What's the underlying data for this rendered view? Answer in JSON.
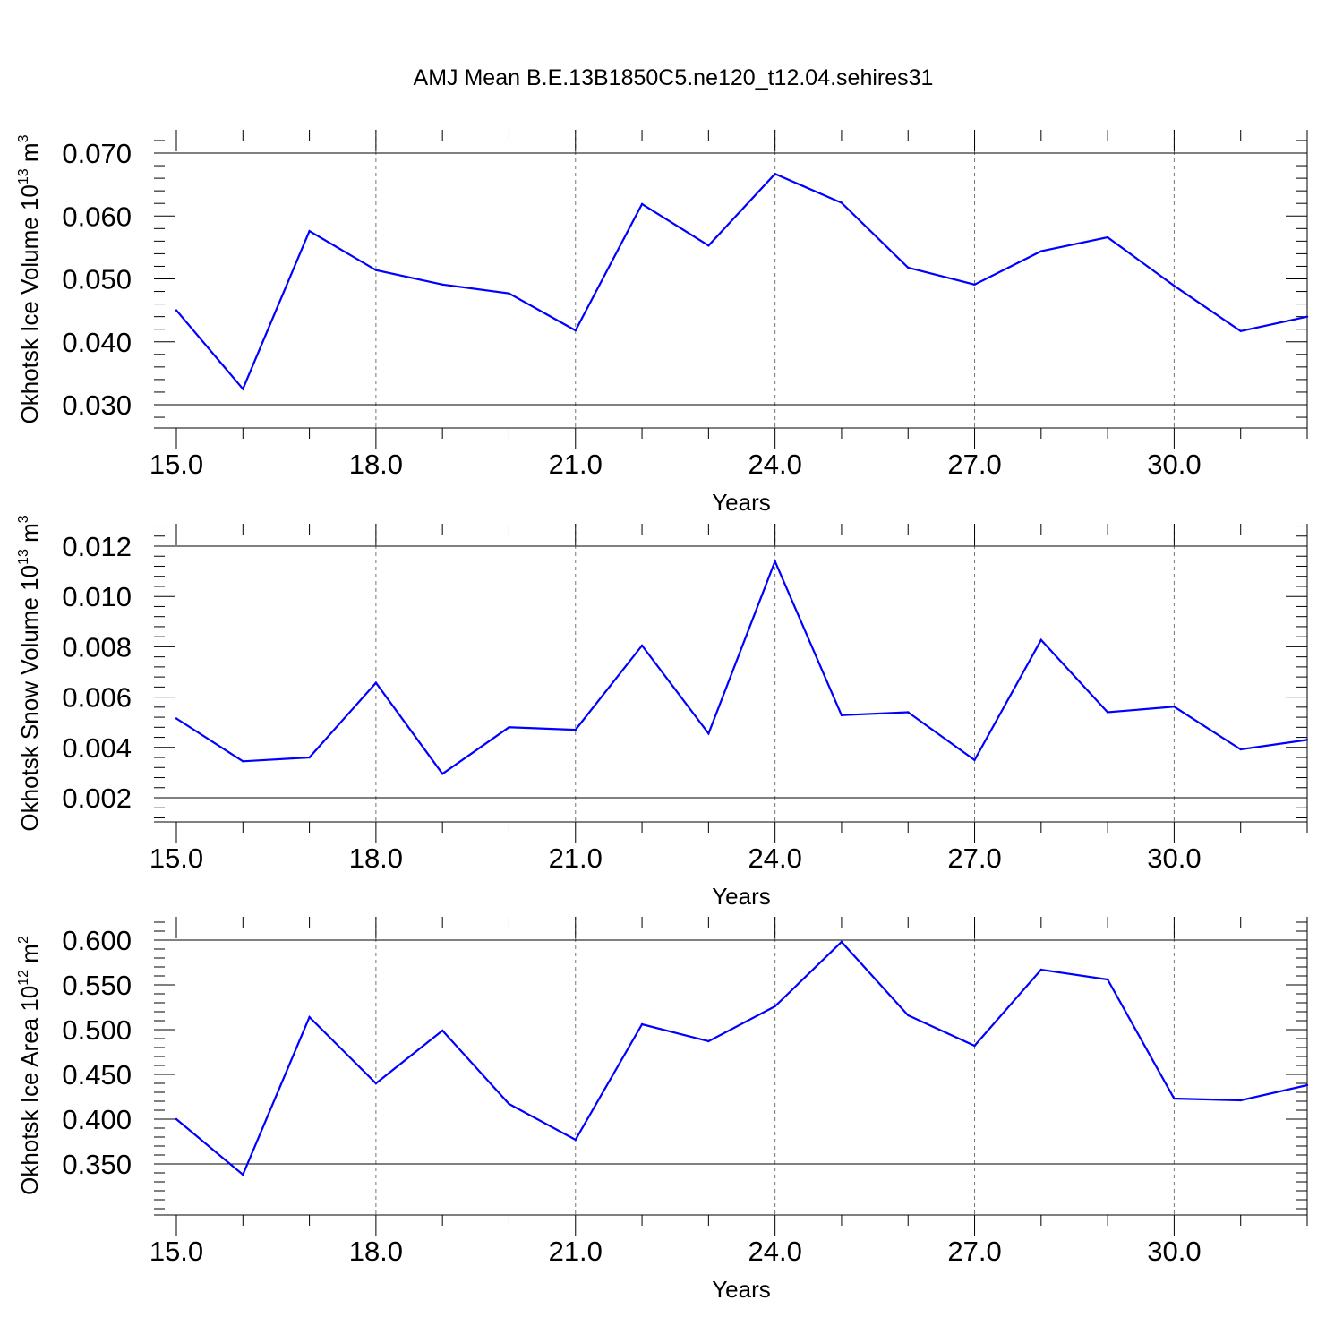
{
  "figure": {
    "title": "AMJ Mean B.E.13B1850C5.ne120_t12.04.sehires31"
  },
  "chart_data": [
    {
      "type": "line",
      "xlabel": "Years",
      "ylabel": {
        "prefix": "Okhotsk Ice Volume 10",
        "exp": "13",
        "mid": " m",
        "unit_exp": "3"
      },
      "xlim": [
        15,
        32
      ],
      "ylim": [
        0.03,
        0.07
      ],
      "x_ticks": [
        "15.0",
        "18.0",
        "21.0",
        "24.0",
        "27.0",
        "30.0"
      ],
      "y_ticks": [
        "0.030",
        "0.040",
        "0.050",
        "0.060",
        "0.070"
      ],
      "x": [
        15,
        16,
        17,
        18,
        19,
        20,
        21,
        22,
        23,
        24,
        25,
        26,
        27,
        28,
        29,
        30,
        31,
        32
      ],
      "series": [
        {
          "color": "#0000ff",
          "values": [
            0.045,
            0.0325,
            0.0576,
            0.0514,
            0.0491,
            0.0477,
            0.0418,
            0.0619,
            0.0553,
            0.0667,
            0.0621,
            0.0518,
            0.0491,
            0.0544,
            0.0566,
            0.0489,
            0.0417,
            0.044
          ]
        }
      ],
      "grid": "vertical dashed at major x ticks"
    },
    {
      "type": "line",
      "xlabel": "Years",
      "ylabel": {
        "prefix": "Okhotsk Snow Volume 10",
        "exp": "13",
        "mid": " m",
        "unit_exp": "3"
      },
      "xlim": [
        15,
        32
      ],
      "ylim": [
        0.002,
        0.012
      ],
      "x_ticks": [
        "15.0",
        "18.0",
        "21.0",
        "24.0",
        "27.0",
        "30.0"
      ],
      "y_ticks": [
        "0.002",
        "0.004",
        "0.006",
        "0.008",
        "0.010",
        "0.012"
      ],
      "x": [
        15,
        16,
        17,
        18,
        19,
        20,
        21,
        22,
        23,
        24,
        25,
        26,
        27,
        28,
        29,
        30,
        31,
        32
      ],
      "series": [
        {
          "color": "#0000ff",
          "values": [
            0.00515,
            0.00345,
            0.0036,
            0.00657,
            0.00295,
            0.0048,
            0.0047,
            0.00805,
            0.00455,
            0.0114,
            0.00528,
            0.0054,
            0.0035,
            0.00827,
            0.0054,
            0.00562,
            0.00392,
            0.0043
          ]
        }
      ],
      "grid": "vertical dashed at major x ticks"
    },
    {
      "type": "line",
      "xlabel": "Years",
      "ylabel": {
        "prefix": "Okhotsk Ice Area 10",
        "exp": "12",
        "mid": " m",
        "unit_exp": "2"
      },
      "xlim": [
        15,
        32
      ],
      "ylim": [
        0.32,
        0.6
      ],
      "x_ticks": [
        "15.0",
        "18.0",
        "21.0",
        "24.0",
        "27.0",
        "30.0"
      ],
      "y_ticks": [
        "0.350",
        "0.400",
        "0.450",
        "0.500",
        "0.550",
        "0.600"
      ],
      "x": [
        15,
        16,
        17,
        18,
        19,
        20,
        21,
        22,
        23,
        24,
        25,
        26,
        27,
        28,
        29,
        30,
        31,
        32
      ],
      "series": [
        {
          "color": "#0000ff",
          "values": [
            0.4,
            0.338,
            0.514,
            0.44,
            0.499,
            0.417,
            0.377,
            0.506,
            0.487,
            0.526,
            0.598,
            0.516,
            0.482,
            0.567,
            0.556,
            0.423,
            0.421,
            0.438
          ]
        }
      ],
      "grid": "vertical dashed at major x ticks"
    }
  ]
}
